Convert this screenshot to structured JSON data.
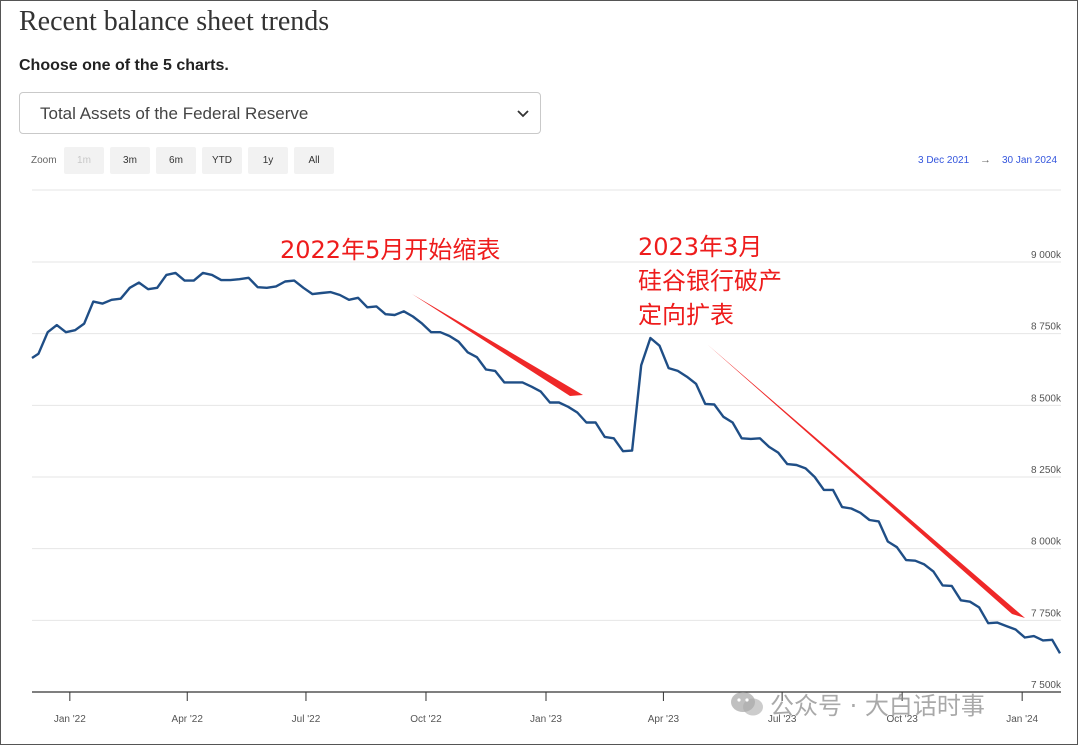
{
  "page": {
    "title": "Recent balance sheet trends",
    "choose_label": "Choose one of the 5 charts.",
    "select_value": "Total Assets of the Federal Reserve"
  },
  "zoom": {
    "label": "Zoom",
    "buttons": [
      {
        "label": "1m",
        "disabled": true
      },
      {
        "label": "3m",
        "disabled": false
      },
      {
        "label": "6m",
        "disabled": false
      },
      {
        "label": "YTD",
        "disabled": false
      },
      {
        "label": "1y",
        "disabled": false
      },
      {
        "label": "All",
        "disabled": false
      }
    ],
    "range_from": "3 Dec 2021",
    "range_arrow": "→",
    "range_to": "30 Jan 2024"
  },
  "annotations": {
    "a1": "2022年5月开始缩表",
    "a2_line1": "2023年3月",
    "a2_line2": "硅谷银行破产",
    "a2_line3": "定向扩表"
  },
  "watermark": "公众号 · 大白话时事",
  "colors": {
    "line": "#1f4e86",
    "annotation": "#ee1c1c",
    "range_link": "#3355dd"
  },
  "chart_data": {
    "type": "line",
    "title": "",
    "xlabel": "",
    "ylabel": "",
    "ylim": [
      7500,
      9000
    ],
    "yticks": [
      7500,
      7750,
      8000,
      8250,
      8500,
      8750,
      9000
    ],
    "ytick_labels": [
      "7 500k",
      "7 750k",
      "8 000k",
      "8 250k",
      "8 500k",
      "8 750k",
      "9 000k"
    ],
    "xlim": [
      "2021-12-03",
      "2024-01-30"
    ],
    "xticks": [
      {
        "date": "2022-01-01",
        "label": "Jan '22"
      },
      {
        "date": "2022-04-01",
        "label": "Apr '22"
      },
      {
        "date": "2022-07-01",
        "label": "Jul '22"
      },
      {
        "date": "2022-10-01",
        "label": "Oct '22"
      },
      {
        "date": "2023-01-01",
        "label": "Jan '23"
      },
      {
        "date": "2023-04-01",
        "label": "Apr '23"
      },
      {
        "date": "2023-07-01",
        "label": "Jul '23"
      },
      {
        "date": "2023-10-01",
        "label": "Oct '23"
      },
      {
        "date": "2024-01-01",
        "label": "Jan '24"
      }
    ],
    "grid": true,
    "series": [
      {
        "values": [
          [
            "2021-12-03",
            8665
          ],
          [
            "2021-12-08",
            8680
          ],
          [
            "2021-12-15",
            8755
          ],
          [
            "2021-12-22",
            8780
          ],
          [
            "2021-12-29",
            8755
          ],
          [
            "2022-01-05",
            8762
          ],
          [
            "2022-01-12",
            8785
          ],
          [
            "2022-01-19",
            8862
          ],
          [
            "2022-01-26",
            8855
          ],
          [
            "2022-02-02",
            8868
          ],
          [
            "2022-02-09",
            8872
          ],
          [
            "2022-02-16",
            8910
          ],
          [
            "2022-02-23",
            8928
          ],
          [
            "2022-03-02",
            8905
          ],
          [
            "2022-03-09",
            8910
          ],
          [
            "2022-03-16",
            8955
          ],
          [
            "2022-03-23",
            8962
          ],
          [
            "2022-03-30",
            8935
          ],
          [
            "2022-04-06",
            8935
          ],
          [
            "2022-04-13",
            8962
          ],
          [
            "2022-04-20",
            8955
          ],
          [
            "2022-04-27",
            8937
          ],
          [
            "2022-05-04",
            8937
          ],
          [
            "2022-05-11",
            8940
          ],
          [
            "2022-05-18",
            8945
          ],
          [
            "2022-05-25",
            8912
          ],
          [
            "2022-06-01",
            8910
          ],
          [
            "2022-06-08",
            8915
          ],
          [
            "2022-06-15",
            8932
          ],
          [
            "2022-06-22",
            8935
          ],
          [
            "2022-06-29",
            8910
          ],
          [
            "2022-07-06",
            8888
          ],
          [
            "2022-07-13",
            8892
          ],
          [
            "2022-07-20",
            8895
          ],
          [
            "2022-07-27",
            8885
          ],
          [
            "2022-08-03",
            8868
          ],
          [
            "2022-08-10",
            8875
          ],
          [
            "2022-08-17",
            8842
          ],
          [
            "2022-08-24",
            8845
          ],
          [
            "2022-08-31",
            8818
          ],
          [
            "2022-09-07",
            8815
          ],
          [
            "2022-09-14",
            8828
          ],
          [
            "2022-09-21",
            8810
          ],
          [
            "2022-09-28",
            8785
          ],
          [
            "2022-10-05",
            8755
          ],
          [
            "2022-10-12",
            8755
          ],
          [
            "2022-10-19",
            8742
          ],
          [
            "2022-10-26",
            8722
          ],
          [
            "2022-11-02",
            8685
          ],
          [
            "2022-11-09",
            8668
          ],
          [
            "2022-11-16",
            8625
          ],
          [
            "2022-11-23",
            8620
          ],
          [
            "2022-11-30",
            8580
          ],
          [
            "2022-12-07",
            8580
          ],
          [
            "2022-12-14",
            8580
          ],
          [
            "2022-12-21",
            8565
          ],
          [
            "2022-12-28",
            8548
          ],
          [
            "2023-01-04",
            8510
          ],
          [
            "2023-01-11",
            8510
          ],
          [
            "2023-01-18",
            8495
          ],
          [
            "2023-01-25",
            8475
          ],
          [
            "2023-02-01",
            8440
          ],
          [
            "2023-02-08",
            8440
          ],
          [
            "2023-02-15",
            8390
          ],
          [
            "2023-02-22",
            8385
          ],
          [
            "2023-03-01",
            8340
          ],
          [
            "2023-03-08",
            8342
          ],
          [
            "2023-03-15",
            8640
          ],
          [
            "2023-03-22",
            8735
          ],
          [
            "2023-03-29",
            8708
          ],
          [
            "2023-04-05",
            8630
          ],
          [
            "2023-04-12",
            8620
          ],
          [
            "2023-04-19",
            8600
          ],
          [
            "2023-04-26",
            8575
          ],
          [
            "2023-05-03",
            8505
          ],
          [
            "2023-05-10",
            8503
          ],
          [
            "2023-05-17",
            8460
          ],
          [
            "2023-05-24",
            8440
          ],
          [
            "2023-05-31",
            8385
          ],
          [
            "2023-06-07",
            8383
          ],
          [
            "2023-06-14",
            8385
          ],
          [
            "2023-06-21",
            8355
          ],
          [
            "2023-06-28",
            8335
          ],
          [
            "2023-07-05",
            8295
          ],
          [
            "2023-07-12",
            8292
          ],
          [
            "2023-07-19",
            8280
          ],
          [
            "2023-07-26",
            8250
          ],
          [
            "2023-08-02",
            8205
          ],
          [
            "2023-08-09",
            8205
          ],
          [
            "2023-08-16",
            8145
          ],
          [
            "2023-08-23",
            8140
          ],
          [
            "2023-08-30",
            8125
          ],
          [
            "2023-09-06",
            8100
          ],
          [
            "2023-09-13",
            8095
          ],
          [
            "2023-09-20",
            8025
          ],
          [
            "2023-09-27",
            8005
          ],
          [
            "2023-10-04",
            7960
          ],
          [
            "2023-10-11",
            7958
          ],
          [
            "2023-10-18",
            7945
          ],
          [
            "2023-10-25",
            7920
          ],
          [
            "2023-11-01",
            7872
          ],
          [
            "2023-11-08",
            7870
          ],
          [
            "2023-11-15",
            7820
          ],
          [
            "2023-11-22",
            7815
          ],
          [
            "2023-11-29",
            7795
          ],
          [
            "2023-12-06",
            7740
          ],
          [
            "2023-12-13",
            7742
          ],
          [
            "2023-12-20",
            7730
          ],
          [
            "2023-12-27",
            7718
          ],
          [
            "2024-01-03",
            7690
          ],
          [
            "2024-01-10",
            7695
          ],
          [
            "2024-01-17",
            7680
          ],
          [
            "2024-01-24",
            7682
          ],
          [
            "2024-01-30",
            7635
          ]
        ]
      }
    ]
  }
}
